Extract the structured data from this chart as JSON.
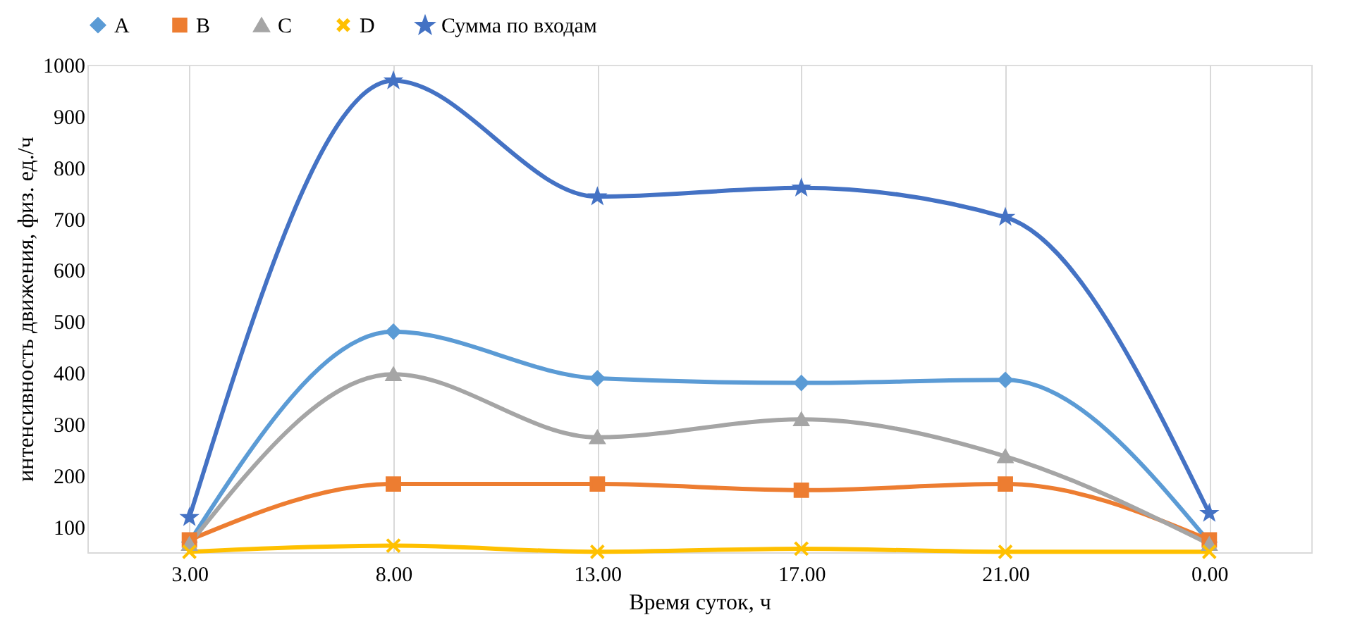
{
  "chart_data": {
    "type": "line",
    "xlabel": "Время суток, ч",
    "ylabel": "интенсивность движения, физ. ед./ч",
    "categories": [
      "3.00",
      "8.00",
      "13.00",
      "17.00",
      "21.00",
      "0.00"
    ],
    "series": [
      {
        "name": "A",
        "color": "#5b9bd5",
        "marker": "diamond",
        "values": [
          70,
          480,
          389,
          380,
          386,
          70
        ]
      },
      {
        "name": "B",
        "color": "#ed7d31",
        "marker": "square",
        "values": [
          74,
          183,
          183,
          171,
          183,
          74
        ]
      },
      {
        "name": "C",
        "color": "#a5a5a5",
        "marker": "triangle",
        "values": [
          66,
          397,
          274,
          309,
          237,
          66
        ]
      },
      {
        "name": "D",
        "color": "#ffc000",
        "marker": "cross",
        "values": [
          51,
          63,
          51,
          57,
          51,
          51
        ]
      },
      {
        "name": "Сумма по входам",
        "color": "#4472c4",
        "marker": "star",
        "values": [
          118,
          969,
          743,
          760,
          703,
          126
        ]
      }
    ],
    "ylim": [
      50,
      1000
    ],
    "yticks": [
      100,
      200,
      300,
      400,
      500,
      600,
      700,
      800,
      900,
      1000
    ],
    "grid": "x",
    "legend": "top",
    "line_style": "solid"
  }
}
